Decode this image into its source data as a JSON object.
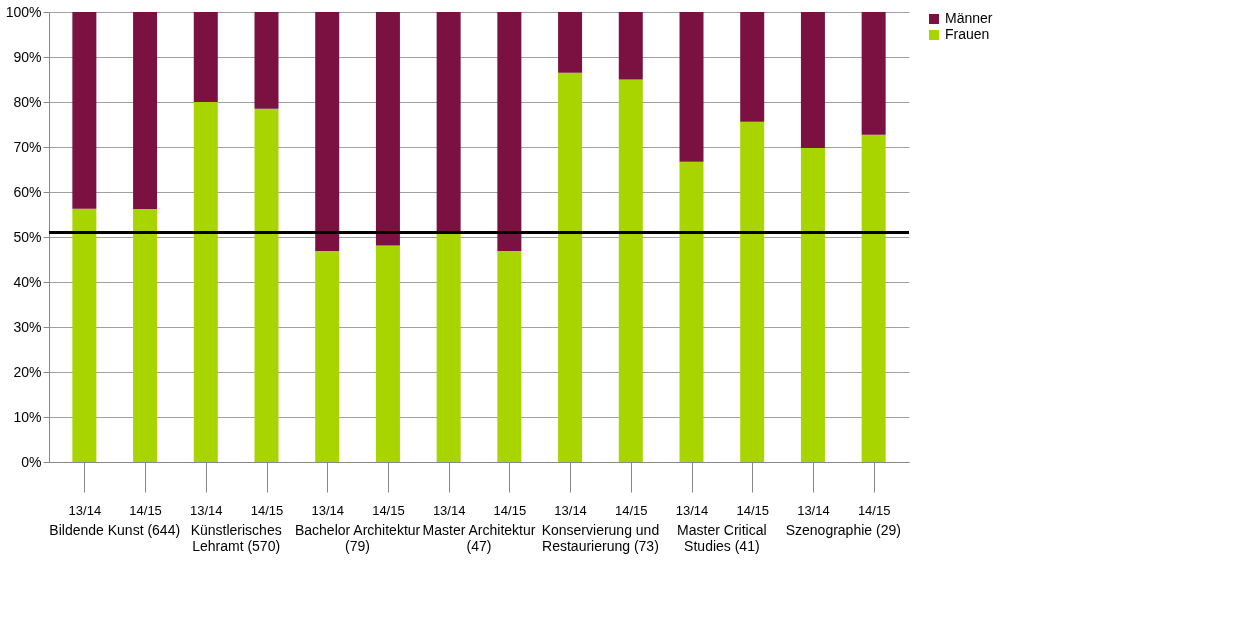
{
  "chart_data": {
    "type": "bar",
    "stacked": true,
    "categories": [
      "13/14",
      "14/15",
      "13/14",
      "14/15",
      "13/14",
      "14/15",
      "13/14",
      "14/15",
      "13/14",
      "14/15",
      "13/14",
      "14/15",
      "13/14",
      "14/15"
    ],
    "series": [
      {
        "name": "Frauen",
        "color": "#a8d400",
        "values": [
          56.3,
          56.2,
          80.0,
          78.5,
          46.9,
          48.1,
          51.0,
          46.9,
          86.5,
          85.0,
          66.7,
          75.6,
          69.8,
          72.7
        ]
      },
      {
        "name": "Männer",
        "color": "#7b1141",
        "values": [
          43.7,
          43.8,
          20.0,
          21.5,
          53.1,
          51.9,
          49.0,
          53.1,
          13.5,
          15.0,
          33.3,
          24.4,
          30.2,
          27.3
        ]
      }
    ],
    "ylim": [
      0,
      100
    ],
    "yticks": [
      {
        "value": 0,
        "label": "0%"
      },
      {
        "value": 10,
        "label": "10%"
      },
      {
        "value": 20,
        "label": "20%"
      },
      {
        "value": 30,
        "label": "30%"
      },
      {
        "value": 40,
        "label": "40%"
      },
      {
        "value": 50,
        "label": "50%"
      },
      {
        "value": 60,
        "label": "60%"
      },
      {
        "value": 70,
        "label": "70%"
      },
      {
        "value": 80,
        "label": "80%"
      },
      {
        "value": 90,
        "label": "90%"
      },
      {
        "value": 100,
        "label": "100%"
      }
    ],
    "ref_lines": [
      {
        "axis": "y",
        "value": 51,
        "color": "#000000"
      }
    ],
    "annotations": [
      "Bildende Kunst (644)",
      "Künstlerisches Lehramt (570)",
      "Bachelor Architektur (79)",
      "Master Architektur (47)",
      "Konservierung und Restaurierung (73)",
      "Master Critical Studies (41)",
      "Szenographie (29)"
    ],
    "grid": "y",
    "legend": "right"
  }
}
